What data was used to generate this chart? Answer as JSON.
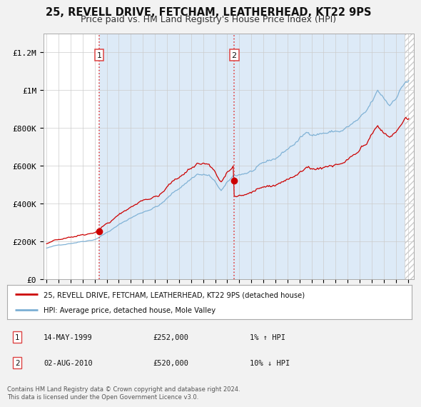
{
  "title": "25, REVELL DRIVE, FETCHAM, LEATHERHEAD, KT22 9PS",
  "subtitle": "Price paid vs. HM Land Registry's House Price Index (HPI)",
  "ylim": [
    0,
    1300000
  ],
  "xlim_start": 1994.75,
  "xlim_end": 2025.5,
  "yticks": [
    0,
    200000,
    400000,
    600000,
    800000,
    1000000,
    1200000
  ],
  "ytick_labels": [
    "£0",
    "£200K",
    "£400K",
    "£600K",
    "£800K",
    "£1M",
    "£1.2M"
  ],
  "background_color": "#f2f2f2",
  "plot_bg_color": "#ffffff",
  "grid_color": "#cccccc",
  "title_fontsize": 10.5,
  "subtitle_fontsize": 9,
  "transaction_color": "#cc0000",
  "hpi_color": "#7bafd4",
  "transaction1": {
    "date_num": 1999.37,
    "price": 252000,
    "label": "1"
  },
  "transaction2": {
    "date_num": 2010.58,
    "price": 520000,
    "label": "2"
  },
  "vline_color": "#dd4444",
  "legend_label1": "25, REVELL DRIVE, FETCHAM, LEATHERHEAD, KT22 9PS (detached house)",
  "legend_label2": "HPI: Average price, detached house, Mole Valley",
  "annotation1_date": "14-MAY-1999",
  "annotation1_price": "£252,000",
  "annotation1_hpi": "1% ↑ HPI",
  "annotation2_date": "02-AUG-2010",
  "annotation2_price": "£520,000",
  "annotation2_hpi": "10% ↓ HPI",
  "footnote": "Contains HM Land Registry data © Crown copyright and database right 2024.\nThis data is licensed under the Open Government Licence v3.0.",
  "shading_color": "#ddeaf7",
  "hatch_color": "#cccccc"
}
